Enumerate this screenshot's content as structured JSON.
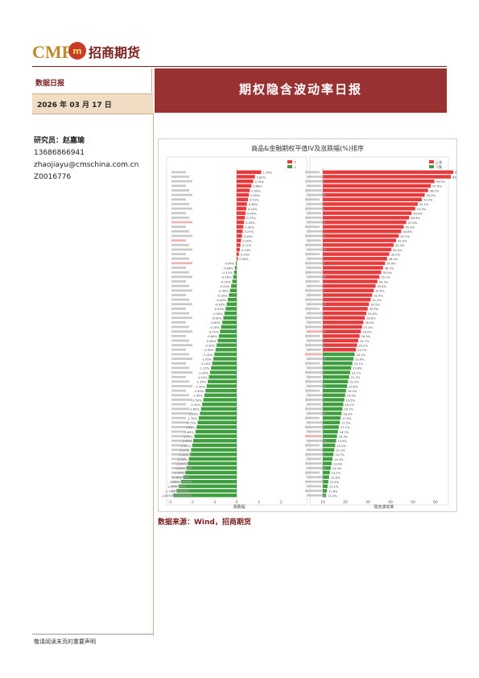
{
  "header": {
    "logo_text": "CMF",
    "logo_cn": "招商期货",
    "report_type": "数据日报",
    "date": "2026 年 03 月 17 日",
    "title": "期权隐含波动率日报"
  },
  "analyst": {
    "label": "研究员：赵嘉瑜",
    "phone": "13686866941",
    "email": "zhaojiayu@cmschina.com.cn",
    "cert": "Z0016776"
  },
  "chart_data": {
    "type": "bar",
    "title": "商品&金融期权平值IV及涨跌幅(%)排序",
    "series": [
      {
        "name": "涨跌幅",
        "xlabel": "涨跌幅",
        "xlim": [
          -3,
          3
        ],
        "x_ticks": [
          "-3",
          "-2",
          "-1",
          "0",
          "1",
          "2"
        ],
        "legend": [
          "↑",
          "↓"
        ],
        "values": [
          1.1,
          0.82,
          0.74,
          0.66,
          0.59,
          0.55,
          0.51,
          0.46,
          0.43,
          0.4,
          0.37,
          0.33,
          0.3,
          0.27,
          0.24,
          0.2,
          0.17,
          0.14,
          0.1,
          0.05,
          -0.04,
          -0.08,
          -0.12,
          -0.16,
          -0.2,
          -0.25,
          -0.3,
          -0.35,
          -0.4,
          -0.45,
          -0.5,
          -0.55,
          -0.6,
          -0.65,
          -0.7,
          -0.75,
          -0.8,
          -0.85,
          -0.9,
          -0.95,
          -1.0,
          -1.05,
          -1.1,
          -1.15,
          -1.2,
          -1.25,
          -1.3,
          -1.35,
          -1.4,
          -1.45,
          -1.5,
          -1.55,
          -1.6,
          -1.65,
          -1.7,
          -1.75,
          -1.8,
          -1.85,
          -1.9,
          -1.95,
          -2.0,
          -2.05,
          -2.1,
          -2.15,
          -2.2,
          -2.25,
          -2.3,
          -2.4,
          -2.5,
          -2.6,
          -2.7,
          -2.85
        ]
      },
      {
        "name": "隐含波动率",
        "xlabel": "隐含波动率",
        "xlim": [
          10,
          60
        ],
        "x_ticks": [
          "10",
          "20",
          "30",
          "40",
          "50",
          "60"
        ],
        "legend": [
          "上涨",
          "下跌"
        ],
        "values": [
          67.9,
          66.8,
          59.5,
          57.9,
          56.7,
          55.2,
          53.9,
          52.1,
          51.0,
          49.4,
          48.3,
          47.0,
          45.9,
          44.8,
          43.7,
          42.5,
          41.4,
          40.4,
          39.5,
          38.5,
          37.6,
          36.7,
          35.9,
          35.1,
          34.2,
          33.4,
          32.6,
          31.9,
          31.2,
          30.5,
          29.9,
          29.3,
          28.6,
          28.0,
          27.4,
          26.9,
          26.3,
          25.7,
          25.2,
          24.7,
          24.1,
          23.6,
          23.1,
          22.6,
          22.1,
          21.7,
          21.2,
          20.8,
          20.3,
          19.9,
          19.5,
          19.1,
          18.7,
          18.3,
          17.9,
          17.5,
          17.1,
          16.7,
          16.3,
          15.9,
          15.5,
          15.1,
          14.7,
          14.3,
          13.9,
          13.5,
          13.1,
          12.8,
          12.4,
          12.1,
          11.8,
          11.5
        ],
        "up_count": 40
      }
    ],
    "colors": {
      "up": "#e8393b",
      "down": "#3f9f3f"
    }
  },
  "source": "数据来源：Wind，招商期货",
  "footer": "敬请阅读末页的重要声明"
}
